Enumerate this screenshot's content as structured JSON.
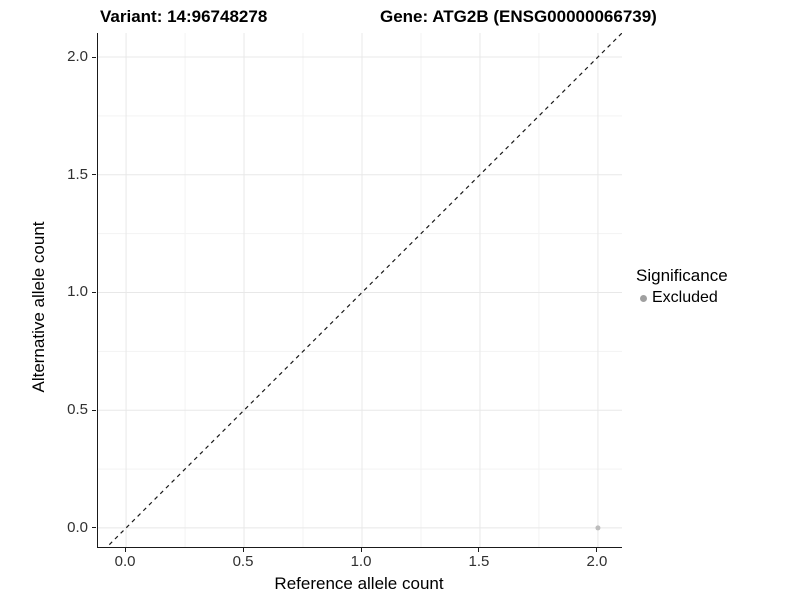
{
  "figure": {
    "title_left": "Variant: 14:96748278",
    "title_right": "Gene: ATG2B (ENSG00000066739)"
  },
  "chart_data": {
    "type": "scatter",
    "title_left": "Variant: 14:96748278",
    "title_right": "Gene: ATG2B (ENSG00000066739)",
    "xlabel": "Reference allele count",
    "ylabel": "Alternative allele count",
    "xlim": [
      -0.119,
      2.102
    ],
    "ylim": [
      -0.081,
      2.102
    ],
    "x_tick_labels": [
      "0.0",
      "0.5",
      "1.0",
      "1.5",
      "2.0"
    ],
    "x_tick_values": [
      0,
      0.5,
      1,
      1.5,
      2
    ],
    "y_tick_labels": [
      "0.0",
      "0.5",
      "1.0",
      "1.5",
      "2.0"
    ],
    "y_tick_values": [
      0,
      0.5,
      1,
      1.5,
      2
    ],
    "minor_tick_values": [
      0.25,
      0.75,
      1.25,
      1.75
    ],
    "grid": {
      "on": true,
      "major_color": "#e8e8e8",
      "minor_color": "#f3f3f3"
    },
    "identity_line": {
      "slope": 1,
      "intercept": 0,
      "dash": "4,4",
      "color": "#1a1a1a",
      "width": 1.2
    },
    "points": [
      {
        "x": 2.0,
        "y": 0.0,
        "series": "Excluded",
        "color": "#bdbdbd",
        "radius": 2.5
      }
    ],
    "legend": {
      "position": "right",
      "title": "Significance",
      "items": [
        {
          "label": "Excluded",
          "color": "#a0a0a0"
        }
      ]
    }
  }
}
